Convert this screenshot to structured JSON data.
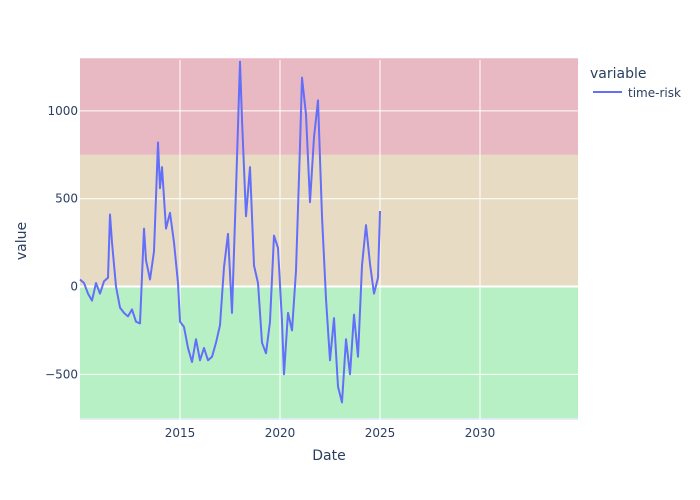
{
  "chart_data": {
    "type": "line",
    "xlabel": "Date",
    "ylabel": "value",
    "xlim": [
      2010.0,
      2034.9
    ],
    "ylim": [
      -760,
      1290
    ],
    "x_ticks": [
      2015,
      2020,
      2025,
      2030
    ],
    "x_tick_labels": [
      "2015",
      "2020",
      "2025",
      "2030"
    ],
    "y_ticks": [
      -500,
      0,
      500,
      1000
    ],
    "y_tick_labels": [
      "−500",
      "0",
      "500",
      "1000"
    ],
    "grid": true,
    "legend": {
      "title": "variable",
      "placement": "top-right"
    },
    "bands": [
      {
        "from": 750,
        "to": 1300,
        "color": "#e8b9c3"
      },
      {
        "from": 0,
        "to": 750,
        "color": "#e8dbc3"
      },
      {
        "from": -750,
        "to": 0,
        "color": "#b8f0c5"
      }
    ],
    "series": [
      {
        "name": "time-risk",
        "color": "#636efa",
        "x": [
          2010.0,
          2010.2,
          2010.4,
          2010.6,
          2010.8,
          2011.0,
          2011.2,
          2011.4,
          2011.5,
          2011.6,
          2011.8,
          2012.0,
          2012.2,
          2012.4,
          2012.6,
          2012.8,
          2013.0,
          2013.2,
          2013.3,
          2013.5,
          2013.7,
          2013.9,
          2014.0,
          2014.1,
          2014.3,
          2014.5,
          2014.7,
          2014.9,
          2015.0,
          2015.2,
          2015.4,
          2015.6,
          2015.8,
          2016.0,
          2016.2,
          2016.4,
          2016.6,
          2016.8,
          2017.0,
          2017.2,
          2017.4,
          2017.6,
          2017.8,
          2018.0,
          2018.1,
          2018.3,
          2018.5,
          2018.7,
          2018.9,
          2019.1,
          2019.3,
          2019.5,
          2019.7,
          2019.9,
          2020.1,
          2020.2,
          2020.4,
          2020.6,
          2020.8,
          2021.0,
          2021.1,
          2021.3,
          2021.5,
          2021.7,
          2021.9,
          2022.1,
          2022.3,
          2022.5,
          2022.7,
          2022.9,
          2023.1,
          2023.3,
          2023.5,
          2023.7,
          2023.9,
          2024.1,
          2024.3,
          2024.5,
          2024.7,
          2024.9,
          2025.0
        ],
        "y": [
          40,
          20,
          -40,
          -80,
          20,
          -40,
          30,
          50,
          410,
          250,
          0,
          -120,
          -150,
          -170,
          -130,
          -200,
          -210,
          330,
          150,
          40,
          200,
          820,
          560,
          680,
          330,
          420,
          250,
          20,
          -200,
          -230,
          -350,
          -430,
          -300,
          -420,
          -350,
          -420,
          -400,
          -320,
          -220,
          110,
          300,
          -150,
          550,
          1280,
          950,
          400,
          680,
          120,
          20,
          -320,
          -380,
          -200,
          290,
          220,
          -200,
          -500,
          -150,
          -250,
          90,
          800,
          1190,
          980,
          480,
          850,
          1060,
          400,
          -70,
          -420,
          -180,
          -570,
          -660,
          -300,
          -500,
          -160,
          -400,
          120,
          350,
          130,
          -40,
          50,
          430
        ]
      }
    ]
  }
}
